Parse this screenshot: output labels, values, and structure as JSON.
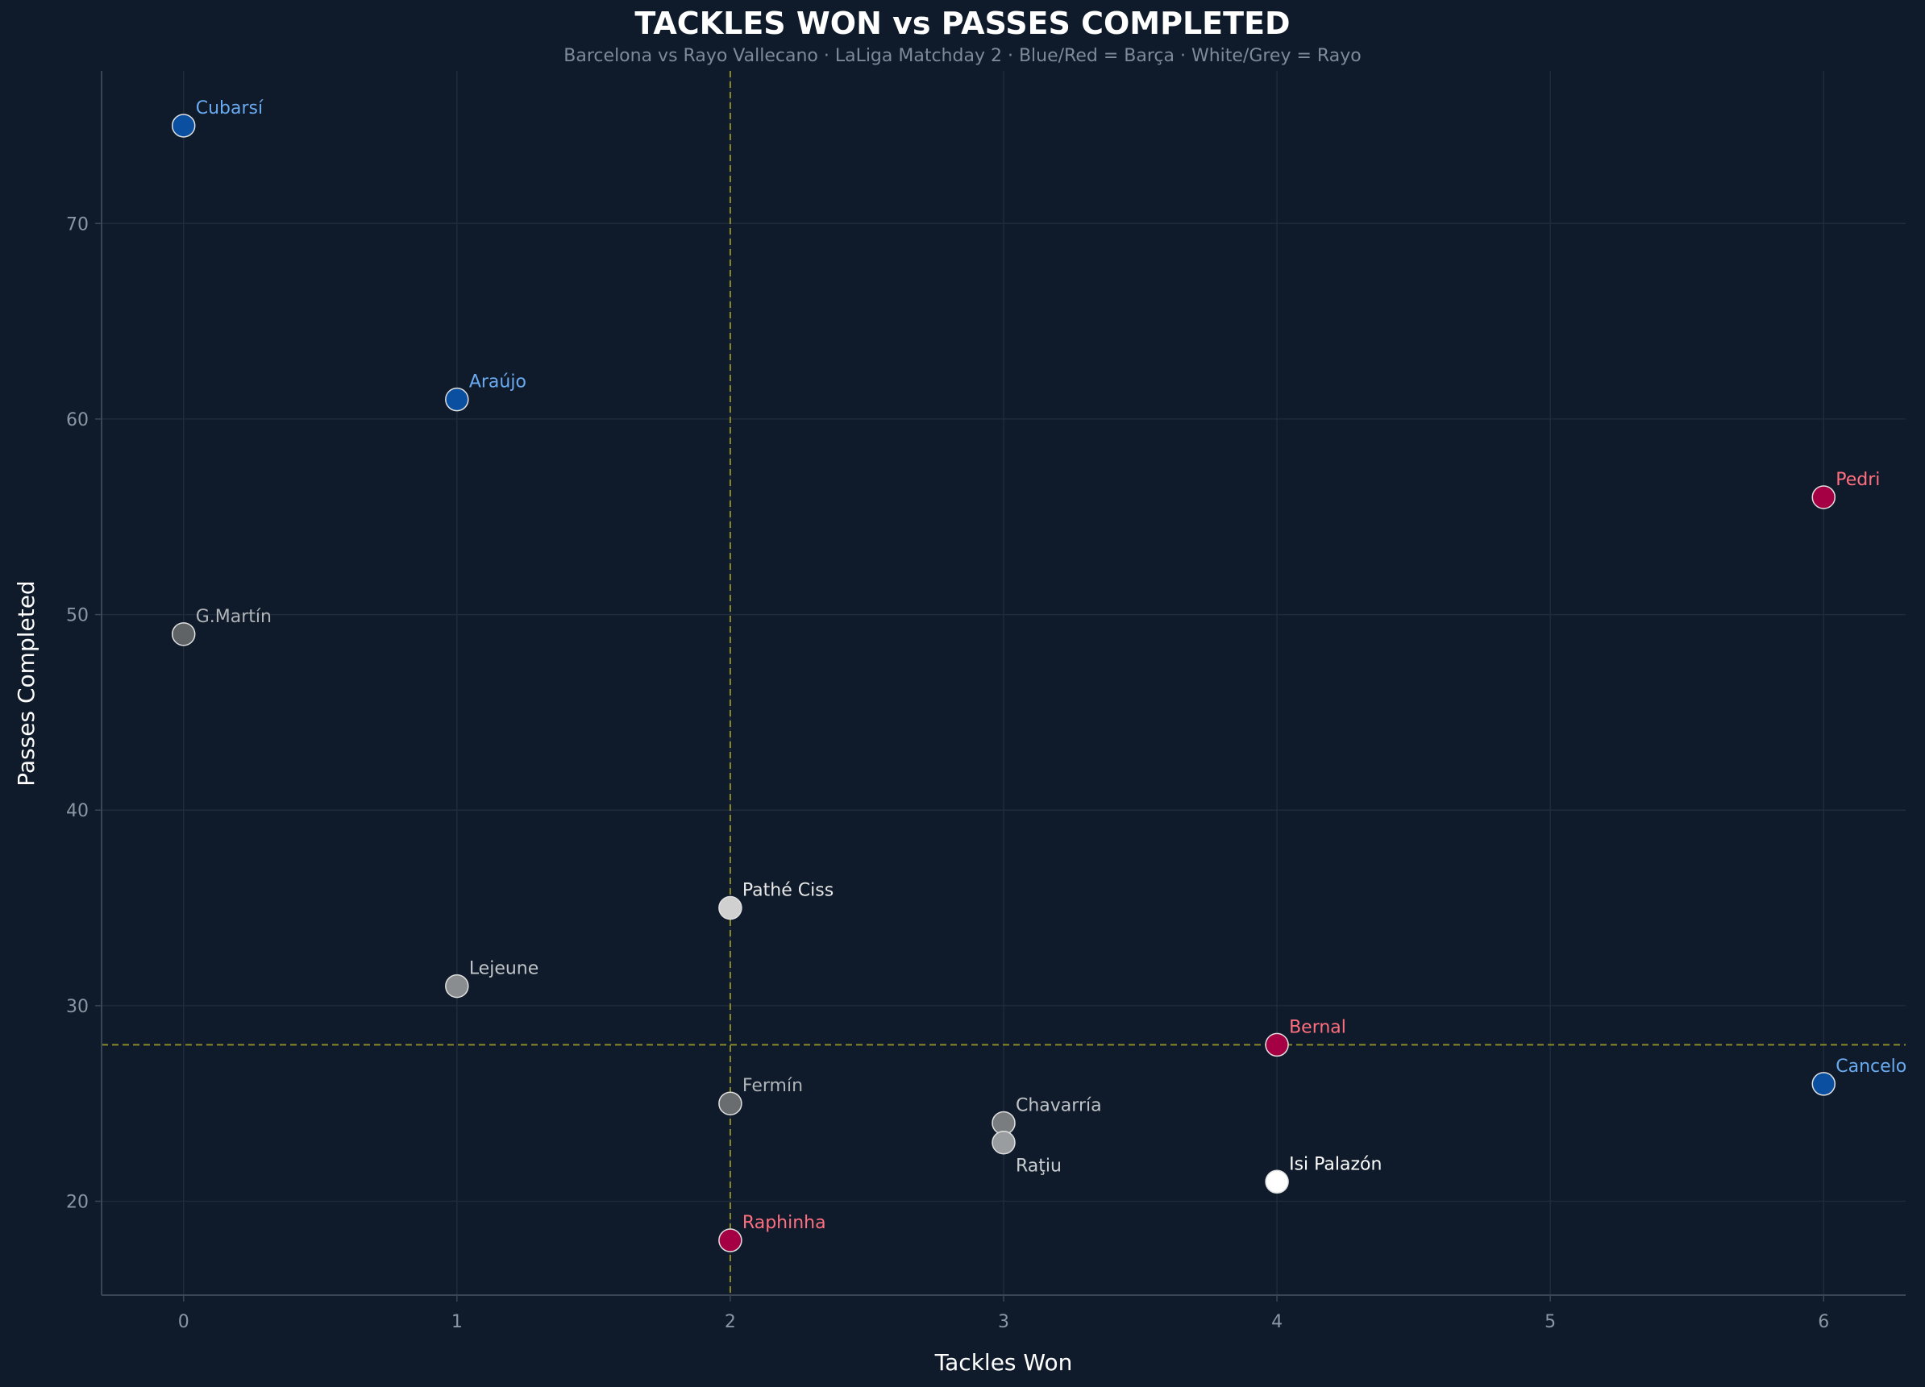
{
  "chart_data": {
    "type": "scatter",
    "title": "TACKLES WON vs PASSES COMPLETED",
    "subtitle": "Barcelona vs Rayo Vallecano · LaLiga Matchday 2 · Blue/Red = Barça · White/Grey = Rayo",
    "xlabel": "Tackles Won",
    "ylabel": "Passes Completed",
    "xlim": [
      -0.3,
      6.3
    ],
    "ylim": [
      15.2,
      77.8
    ],
    "xticks": [
      0,
      1,
      2,
      3,
      4,
      5,
      6
    ],
    "yticks": [
      20,
      30,
      40,
      50,
      60,
      70
    ],
    "grid": true,
    "reference_lines": {
      "x": 2,
      "y": 28
    },
    "points": [
      {
        "name": "Cubarsí",
        "x": 0,
        "y": 75,
        "color": "#0a4fa0",
        "label_color": "#6aaaf0"
      },
      {
        "name": "Araújo",
        "x": 1,
        "y": 61,
        "color": "#0a4fa0",
        "label_color": "#6aaaf0"
      },
      {
        "name": "Pedri",
        "x": 6,
        "y": 56,
        "color": "#a50044",
        "label_color": "#ff6f7f"
      },
      {
        "name": "G.Martín",
        "x": 0,
        "y": 49,
        "color": "#5f6366",
        "label_color": "#b0b4b8"
      },
      {
        "name": "Pathé Ciss",
        "x": 2,
        "y": 35,
        "color": "#d0d0d0",
        "label_color": "#e8e8e8"
      },
      {
        "name": "Lejeune",
        "x": 1,
        "y": 31,
        "color": "#8a8d90",
        "label_color": "#c0c4c8"
      },
      {
        "name": "Bernal",
        "x": 4,
        "y": 28,
        "color": "#a50044",
        "label_color": "#ff6f7f"
      },
      {
        "name": "Cancelo",
        "x": 6,
        "y": 26,
        "color": "#0a4fa0",
        "label_color": "#6aaaf0"
      },
      {
        "name": "Fermín",
        "x": 2,
        "y": 25,
        "color": "#6a6d70",
        "label_color": "#b0b4b8"
      },
      {
        "name": "Chavarría",
        "x": 3,
        "y": 24,
        "color": "#7a7d80",
        "label_color": "#c0c4c8"
      },
      {
        "name": "Raţiu",
        "x": 3,
        "y": 23,
        "color": "#9a9d9f",
        "label_color": "#c8ccd0"
      },
      {
        "name": "Isi Palazón",
        "x": 4,
        "y": 21,
        "color": "#ffffff",
        "label_color": "#ffffff"
      },
      {
        "name": "Raphinha",
        "x": 2,
        "y": 18,
        "color": "#a50044",
        "label_color": "#ff6f7f"
      }
    ]
  }
}
